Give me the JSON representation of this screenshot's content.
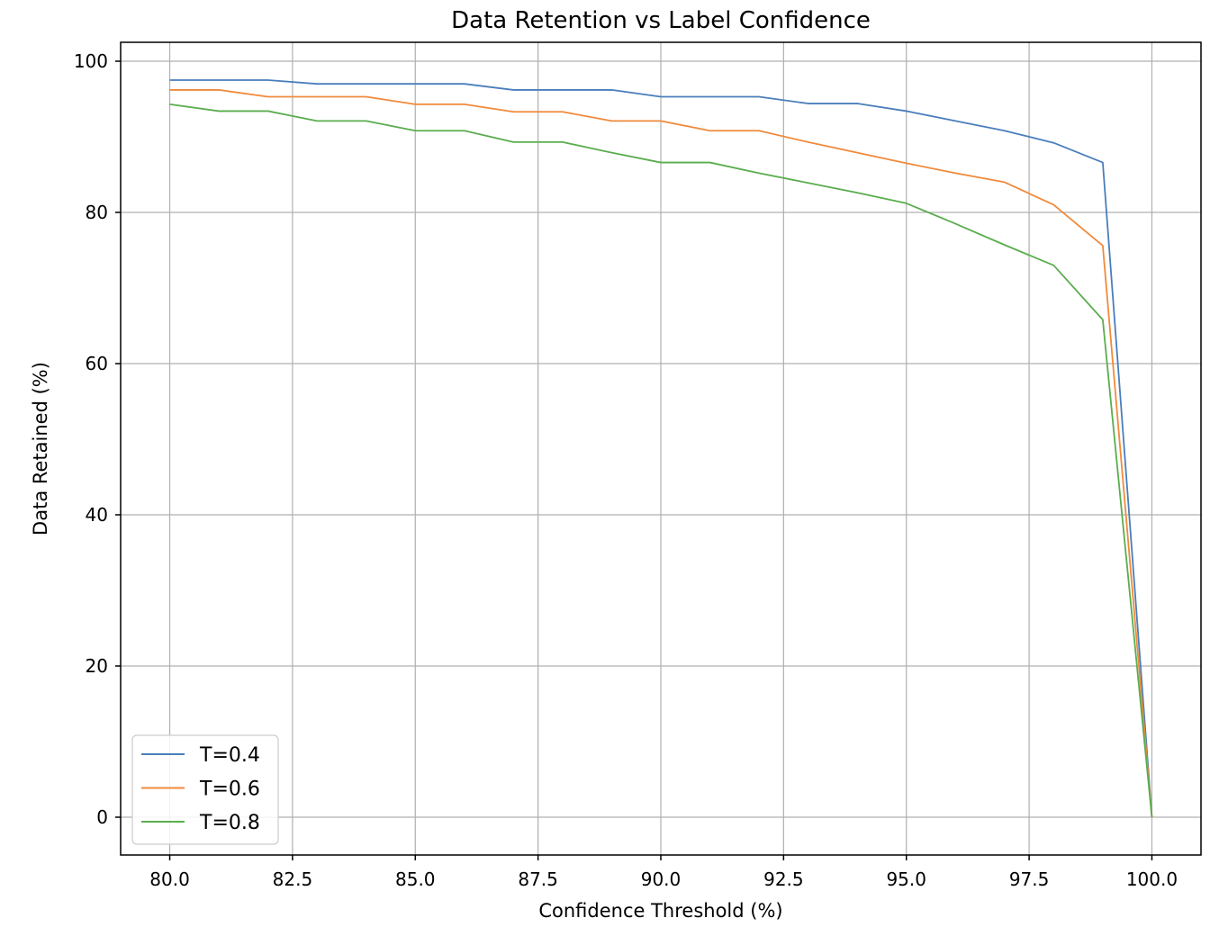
{
  "chart_data": {
    "type": "line",
    "title": "Data Retention vs Label Confidence",
    "xlabel": "Confidence Threshold (%)",
    "ylabel": "Data Retained (%)",
    "xlim": [
      79.0,
      101.0
    ],
    "ylim": [
      -5.0,
      102.5
    ],
    "xticks": [
      80.0,
      82.5,
      85.0,
      87.5,
      90.0,
      92.5,
      95.0,
      97.5,
      100.0
    ],
    "xtick_labels": [
      "80.0",
      "82.5",
      "85.0",
      "87.5",
      "90.0",
      "92.5",
      "95.0",
      "97.5",
      "100.0"
    ],
    "yticks": [
      0,
      20,
      40,
      60,
      80,
      100
    ],
    "ytick_labels": [
      "0",
      "20",
      "40",
      "60",
      "80",
      "100"
    ],
    "grid": true,
    "legend_position": "lower-left",
    "x": [
      80,
      81,
      82,
      83,
      84,
      85,
      86,
      87,
      88,
      89,
      90,
      91,
      92,
      93,
      94,
      95,
      96,
      97,
      98,
      99,
      100
    ],
    "series": [
      {
        "name": "T=0.4",
        "color": "#4a7ebb",
        "values": [
          97.5,
          97.5,
          97.5,
          97.0,
          97.0,
          97.0,
          97.0,
          96.2,
          96.2,
          96.2,
          95.3,
          95.3,
          95.3,
          94.4,
          94.4,
          93.4,
          92.1,
          90.8,
          89.2,
          86.6,
          0.0
        ]
      },
      {
        "name": "T=0.6",
        "color": "#f08a3c",
        "values": [
          96.2,
          96.2,
          95.3,
          95.3,
          95.3,
          94.3,
          94.3,
          93.3,
          93.3,
          92.1,
          92.1,
          90.8,
          90.8,
          89.3,
          87.9,
          86.5,
          85.2,
          84.0,
          81.0,
          75.6,
          0.0
        ]
      },
      {
        "name": "T=0.8",
        "color": "#5aad4e",
        "values": [
          94.3,
          93.4,
          93.4,
          92.1,
          92.1,
          90.8,
          90.8,
          89.3,
          89.3,
          87.9,
          86.6,
          86.6,
          85.2,
          83.9,
          82.6,
          81.2,
          78.5,
          75.7,
          73.0,
          65.8,
          0.0
        ]
      }
    ]
  }
}
